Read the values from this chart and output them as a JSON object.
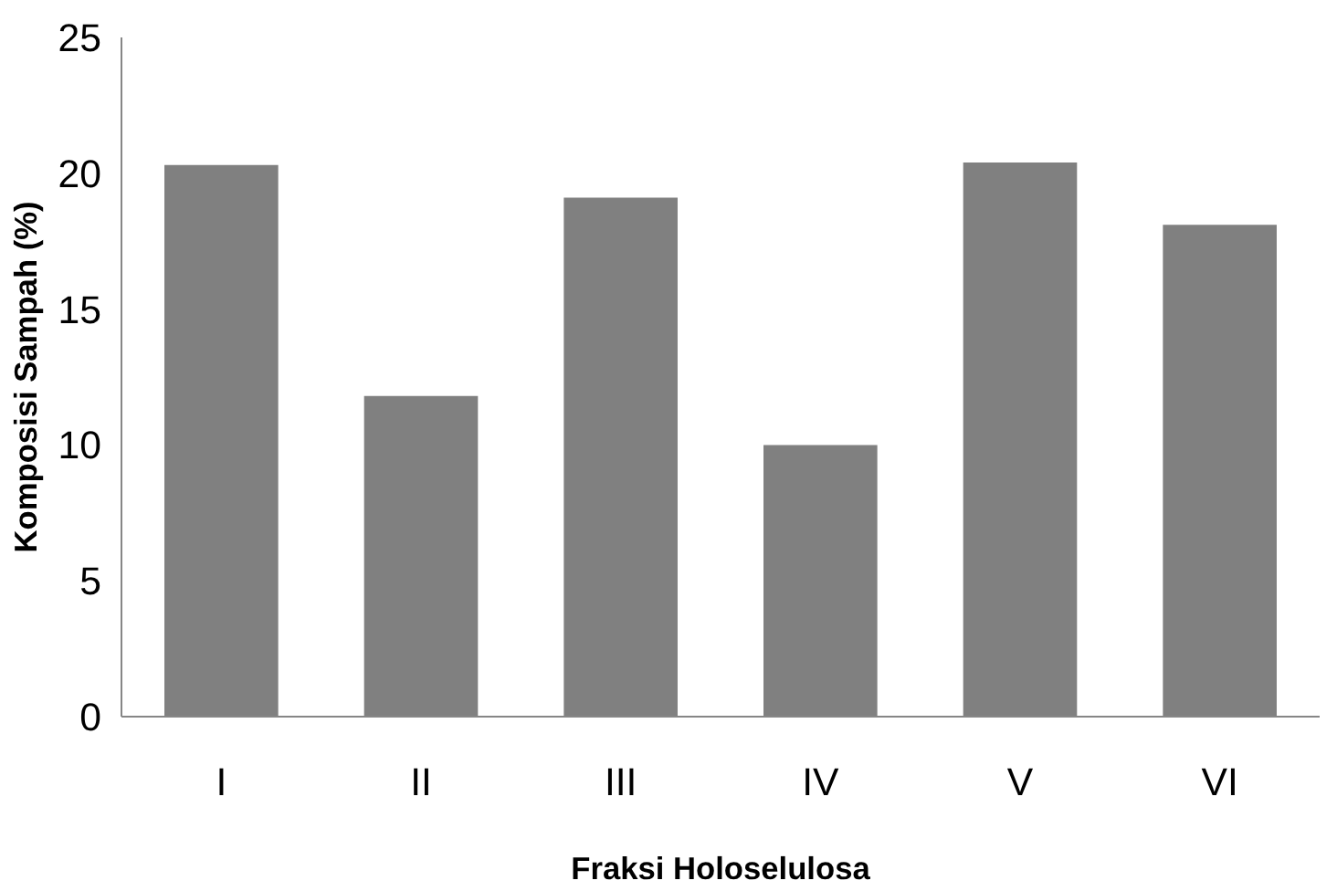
{
  "chart_data": {
    "type": "bar",
    "xlabel": "Fraksi Holoselulosa",
    "ylabel": "Komposisi Sampah (%)",
    "categories": [
      "I",
      "II",
      "III",
      "IV",
      "V",
      "VI"
    ],
    "values": [
      20.3,
      11.8,
      19.1,
      10.0,
      20.4,
      18.1
    ],
    "color": "#808080",
    "ylim": [
      0,
      25
    ],
    "yticks": [
      0,
      5,
      10,
      15,
      20,
      25
    ],
    "grid": false
  }
}
